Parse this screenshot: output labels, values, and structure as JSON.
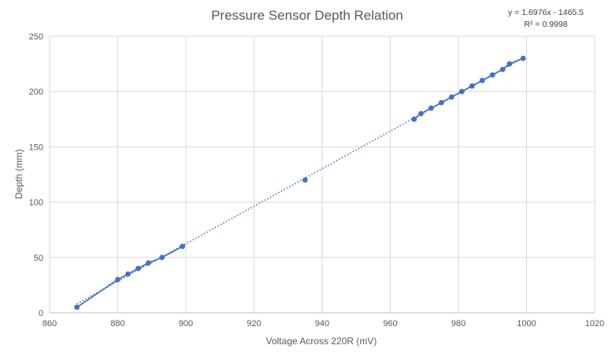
{
  "chart_data": {
    "type": "scatter",
    "title": "Pressure Sensor Depth Relation",
    "xlabel": "Voltage Across 220R (mV)",
    "ylabel": "Depth (mm)",
    "xlim": [
      860,
      1020
    ],
    "ylim": [
      0,
      250
    ],
    "xticks": [
      860,
      880,
      900,
      920,
      940,
      960,
      980,
      1000,
      1020
    ],
    "yticks": [
      0,
      50,
      100,
      150,
      200,
      250
    ],
    "grid": true,
    "series": [
      {
        "color": "#4472C4",
        "x": [
          868,
          880,
          883,
          886,
          889,
          893,
          899,
          935,
          967,
          969,
          972,
          975,
          978,
          981,
          984,
          987,
          990,
          993,
          995,
          999
        ],
        "y": [
          5,
          30,
          35,
          40,
          45,
          50,
          60,
          120,
          175,
          180,
          185,
          190,
          195,
          200,
          205,
          210,
          215,
          220,
          225,
          230
        ]
      }
    ],
    "trendline": {
      "type": "linear",
      "slope": 1.6976,
      "intercept": -1465.5,
      "style": "dotted",
      "color": "#4472C4",
      "equation": "y = 1.6976x - 1465.5",
      "r_squared": "R² = 0.9998"
    }
  }
}
